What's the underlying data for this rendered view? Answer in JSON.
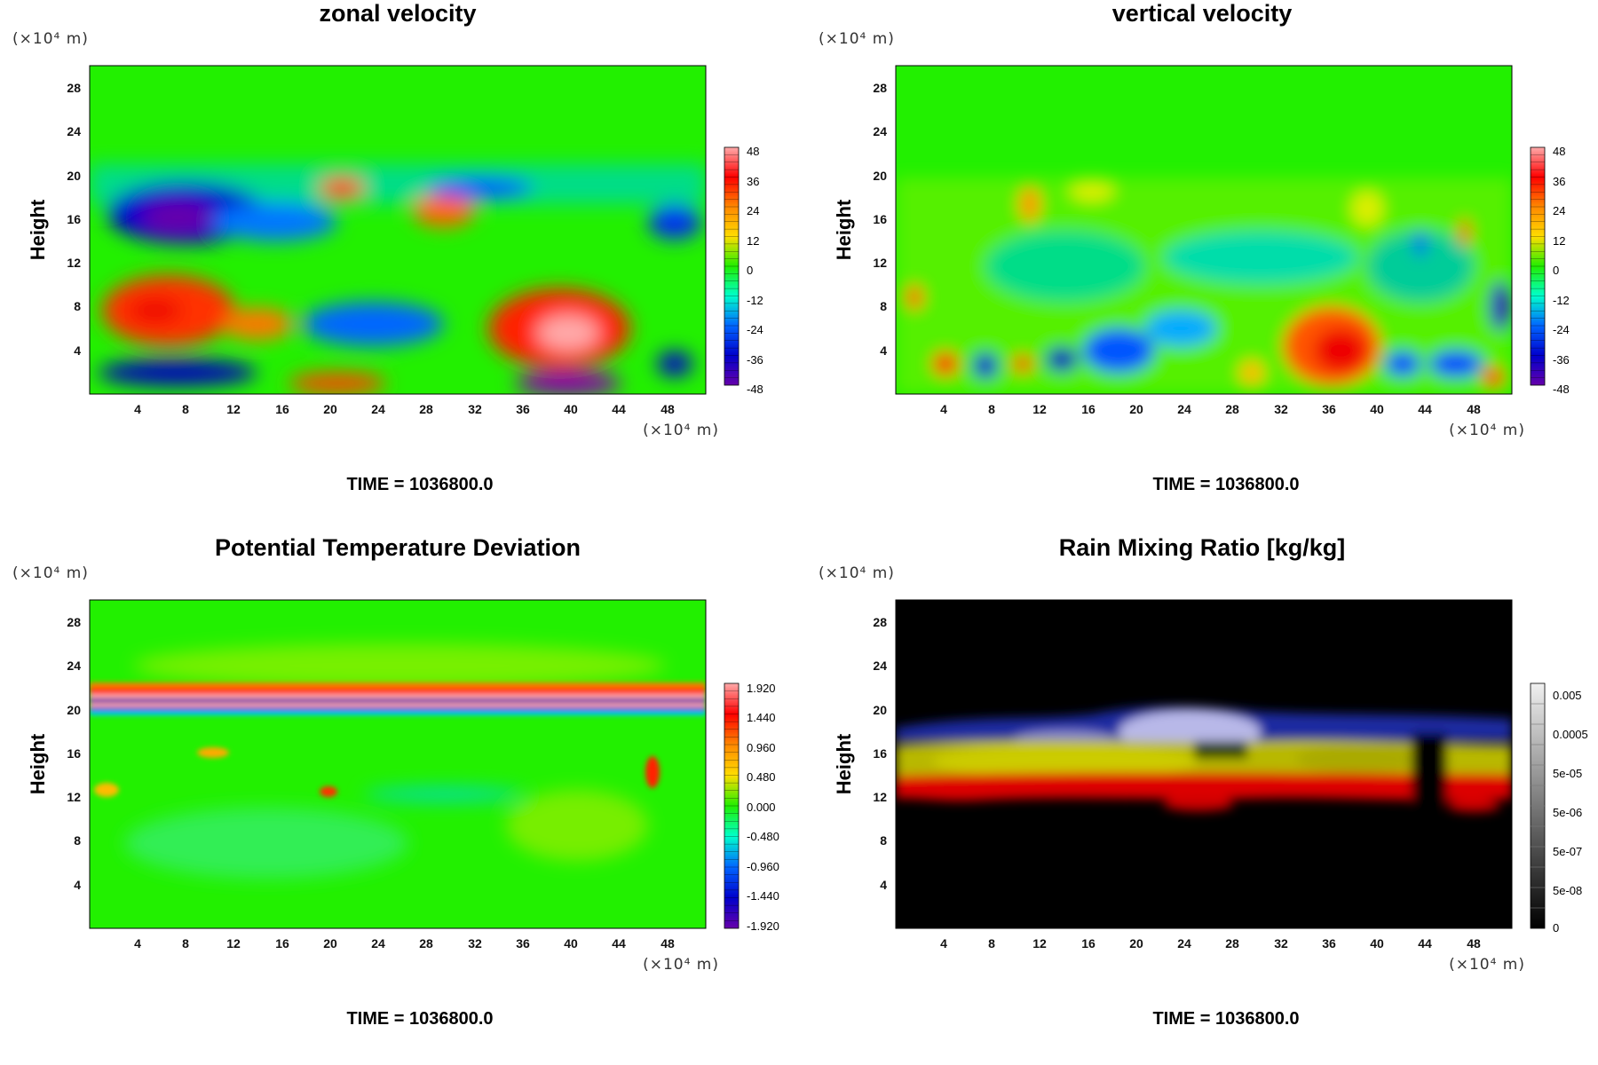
{
  "chart_data": [
    {
      "type": "heatmap",
      "title": "zonal velocity",
      "ylabel": "Height",
      "x_unit": "(×10⁴ m)",
      "y_unit": "(×10⁴ m)",
      "x_ticks": [
        4,
        8,
        12,
        16,
        20,
        24,
        28,
        32,
        36,
        40,
        44,
        48
      ],
      "y_ticks": [
        4,
        8,
        12,
        16,
        20,
        24,
        28
      ],
      "xlim": [
        0,
        51.2
      ],
      "ylim": [
        0,
        30
      ],
      "colorbar": {
        "labels": [
          "48",
          "36",
          "24",
          "12",
          "0",
          "-12",
          "-24",
          "-36",
          "-48"
        ],
        "range": [
          -48,
          48
        ],
        "scheme": "rainbow"
      },
      "time": "TIME = 1036800.0"
    },
    {
      "type": "heatmap",
      "title": "vertical velocity",
      "ylabel": "Height",
      "x_unit": "(×10⁴ m)",
      "y_unit": "(×10⁴ m)",
      "x_ticks": [
        4,
        8,
        12,
        16,
        20,
        24,
        28,
        32,
        36,
        40,
        44,
        48
      ],
      "y_ticks": [
        4,
        8,
        12,
        16,
        20,
        24,
        28
      ],
      "xlim": [
        0,
        51.2
      ],
      "ylim": [
        0,
        30
      ],
      "colorbar": {
        "labels": [
          "48",
          "36",
          "24",
          "12",
          "0",
          "-12",
          "-24",
          "-36",
          "-48"
        ],
        "range": [
          -48,
          48
        ],
        "scheme": "rainbow"
      },
      "time": "TIME = 1036800.0"
    },
    {
      "type": "heatmap",
      "title": "Potential Temperature Deviation",
      "ylabel": "Height",
      "x_unit": "(×10⁴ m)",
      "y_unit": "(×10⁴ m)",
      "x_ticks": [
        4,
        8,
        12,
        16,
        20,
        24,
        28,
        32,
        36,
        40,
        44,
        48
      ],
      "y_ticks": [
        4,
        8,
        12,
        16,
        20,
        24,
        28
      ],
      "xlim": [
        0,
        51.2
      ],
      "ylim": [
        0,
        30
      ],
      "colorbar": {
        "labels": [
          "1.920",
          "1.440",
          "0.960",
          "0.480",
          "0.000",
          "-0.480",
          "-0.960",
          "-1.440",
          "-1.920"
        ],
        "range": [
          -1.92,
          1.92
        ],
        "scheme": "rainbow"
      },
      "time": "TIME = 1036800.0"
    },
    {
      "type": "heatmap",
      "title": "Rain Mixing Ratio [kg/kg]",
      "ylabel": "Height",
      "x_unit": "(×10⁴ m)",
      "y_unit": "(×10⁴ m)",
      "x_ticks": [
        4,
        8,
        12,
        16,
        20,
        24,
        28,
        32,
        36,
        40,
        44,
        48
      ],
      "y_ticks": [
        4,
        8,
        12,
        16,
        20,
        24,
        28
      ],
      "xlim": [
        0,
        51.2
      ],
      "ylim": [
        0,
        30
      ],
      "colorbar": {
        "labels": [
          "0.005",
          "0.0005",
          "5e-05",
          "5e-06",
          "5e-07",
          "5e-08",
          "0"
        ],
        "scheme": "grayscale-log"
      },
      "time": "TIME = 1036800.0"
    }
  ]
}
